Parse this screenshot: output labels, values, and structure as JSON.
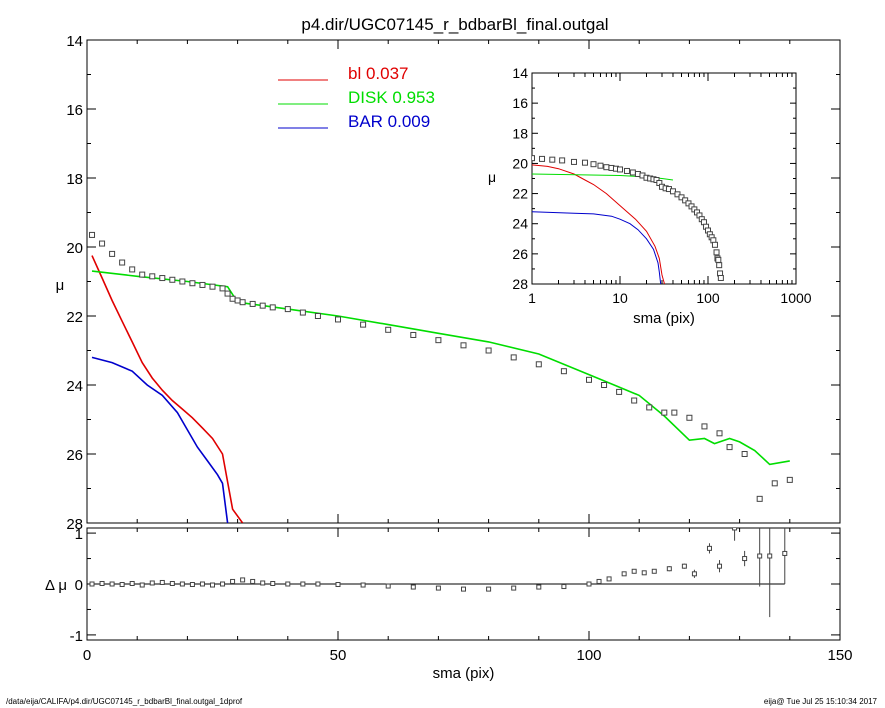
{
  "chart_data": [
    {
      "id": "main",
      "type": "line",
      "title": "p4.dir/UGC07145_r_bdbarBl_final.outgal",
      "xlabel": "sma (pix)",
      "ylabel": "μ",
      "xlim": [
        0,
        150
      ],
      "ylim": [
        28,
        14
      ],
      "y_inverted": true,
      "xticks": [
        0,
        50,
        100,
        150
      ],
      "yticks": [
        14,
        16,
        18,
        20,
        22,
        24,
        26,
        28
      ],
      "legend_placement": "top-center",
      "series": [
        {
          "key": "bl",
          "name": "bl",
          "value_label": "0.037",
          "color": "#e00000",
          "x": [
            1,
            3,
            5,
            7,
            9,
            11,
            13,
            15,
            17,
            19,
            21,
            23,
            25,
            27,
            29,
            31
          ],
          "y": [
            20.25,
            20.9,
            21.55,
            22.15,
            22.75,
            23.35,
            23.8,
            24.15,
            24.45,
            24.7,
            24.95,
            25.25,
            25.55,
            26.0,
            27.6,
            28.0
          ]
        },
        {
          "key": "disk",
          "name": "DISK",
          "value_label": "0.953",
          "color": "#00dd00",
          "x": [
            1,
            10,
            20,
            28,
            30,
            35,
            40,
            50,
            60,
            70,
            80,
            90,
            100,
            105,
            110,
            115,
            120,
            123,
            125,
            128,
            130,
            133,
            136,
            140
          ],
          "y": [
            20.7,
            20.85,
            21.0,
            21.15,
            21.6,
            21.7,
            21.8,
            22.0,
            22.25,
            22.5,
            22.75,
            23.1,
            23.7,
            24.0,
            24.3,
            24.9,
            25.6,
            25.55,
            25.7,
            25.55,
            25.65,
            25.9,
            26.3,
            26.2
          ]
        },
        {
          "key": "bar",
          "name": "BAR",
          "value_label": "0.009",
          "color": "#0000cc",
          "x": [
            1,
            5,
            9,
            12,
            15,
            18,
            20,
            22,
            24,
            26,
            27,
            28
          ],
          "y": [
            23.2,
            23.35,
            23.6,
            24.0,
            24.3,
            24.8,
            25.3,
            25.8,
            26.2,
            26.6,
            26.85,
            28.0
          ]
        },
        {
          "key": "data",
          "name": "",
          "color": "#444444",
          "marker": "square",
          "x": [
            1,
            3,
            5,
            7,
            9,
            11,
            13,
            15,
            17,
            19,
            21,
            23,
            25,
            27,
            28,
            29,
            30,
            31,
            33,
            35,
            37,
            40,
            43,
            46,
            50,
            55,
            60,
            65,
            70,
            75,
            80,
            85,
            90,
            95,
            100,
            103,
            106,
            109,
            112,
            115,
            117,
            120,
            123,
            126,
            128,
            131,
            134,
            137,
            140
          ],
          "y": [
            19.65,
            19.9,
            20.2,
            20.45,
            20.65,
            20.8,
            20.85,
            20.9,
            20.95,
            21.0,
            21.05,
            21.1,
            21.15,
            21.2,
            21.35,
            21.5,
            21.55,
            21.6,
            21.65,
            21.7,
            21.75,
            21.8,
            21.9,
            22.0,
            22.1,
            22.25,
            22.4,
            22.55,
            22.7,
            22.85,
            23.0,
            23.2,
            23.4,
            23.6,
            23.85,
            24.0,
            24.2,
            24.45,
            24.65,
            24.8,
            24.8,
            24.95,
            25.2,
            25.4,
            25.8,
            26.0,
            27.3,
            26.85,
            26.75
          ]
        }
      ]
    },
    {
      "id": "inset",
      "type": "line",
      "xlabel": "sma (pix)",
      "ylabel": "μ",
      "x_scale": "log",
      "xlim": [
        1,
        1000
      ],
      "ylim": [
        28,
        14
      ],
      "y_inverted": true,
      "xticks": [
        1,
        10,
        100,
        1000
      ],
      "yticks": [
        14,
        16,
        18,
        20,
        22,
        24,
        26,
        28
      ],
      "series": [
        {
          "key": "bl",
          "color": "#e00000",
          "x": [
            1,
            1.5,
            2,
            3,
            4,
            5,
            7,
            10,
            15,
            20,
            25,
            28,
            30,
            32
          ],
          "y": [
            20.1,
            20.2,
            20.35,
            20.7,
            21.1,
            21.4,
            22.0,
            22.8,
            23.7,
            24.5,
            25.5,
            26.3,
            27.4,
            28.0
          ]
        },
        {
          "key": "disk",
          "color": "#00dd00",
          "x": [
            1,
            10,
            20,
            30,
            40
          ],
          "y": [
            20.7,
            20.8,
            20.9,
            21.0,
            21.1
          ]
        },
        {
          "key": "bar",
          "color": "#0000cc",
          "x": [
            1,
            3,
            5,
            8,
            10,
            13,
            16,
            20,
            24,
            27,
            28,
            29
          ],
          "y": [
            23.2,
            23.3,
            23.35,
            23.5,
            23.7,
            24.0,
            24.4,
            25.0,
            25.7,
            26.6,
            27.2,
            28.0
          ]
        },
        {
          "key": "data",
          "color": "#444444",
          "marker": "square",
          "x": [
            1,
            1.3,
            1.7,
            2.2,
            3,
            4,
            5,
            6,
            7,
            8,
            9,
            10,
            12,
            14,
            16,
            18,
            20,
            22,
            24,
            26,
            28,
            30,
            33,
            36,
            40,
            45,
            50,
            55,
            60,
            65,
            70,
            75,
            80,
            85,
            90,
            95,
            100,
            105,
            110,
            115,
            120,
            125,
            128,
            131,
            134,
            137,
            140
          ],
          "y": [
            19.65,
            19.7,
            19.75,
            19.8,
            19.9,
            19.95,
            20.05,
            20.15,
            20.25,
            20.3,
            20.35,
            20.4,
            20.5,
            20.6,
            20.7,
            20.8,
            20.95,
            21.0,
            21.05,
            21.1,
            21.3,
            21.55,
            21.65,
            21.7,
            21.85,
            22.05,
            22.25,
            22.45,
            22.65,
            22.85,
            23.05,
            23.25,
            23.45,
            23.7,
            23.9,
            24.2,
            24.45,
            24.7,
            24.9,
            25.1,
            25.4,
            25.9,
            26.3,
            26.4,
            26.75,
            27.3,
            27.6
          ]
        }
      ]
    },
    {
      "id": "residual",
      "type": "scatter",
      "xlabel": "sma (pix)",
      "ylabel": "Δ μ",
      "xlim": [
        0,
        150
      ],
      "ylim": [
        -1.1,
        1.1
      ],
      "xticks": [
        0,
        50,
        100,
        150
      ],
      "yticks": [
        -1,
        0,
        1
      ],
      "zero_line": true,
      "color": "#444444",
      "x": [
        1,
        3,
        5,
        7,
        9,
        11,
        13,
        15,
        17,
        19,
        21,
        23,
        25,
        27,
        29,
        31,
        33,
        35,
        37,
        40,
        43,
        46,
        50,
        55,
        60,
        65,
        70,
        75,
        80,
        85,
        90,
        95,
        100,
        102,
        104,
        107,
        109,
        111,
        113,
        116,
        119,
        121,
        124,
        126,
        129,
        131,
        134,
        136,
        139
      ],
      "y": [
        0.0,
        0.01,
        0.0,
        -0.01,
        0.01,
        -0.02,
        0.02,
        0.03,
        0.01,
        0.0,
        -0.01,
        0.0,
        -0.02,
        0.0,
        0.05,
        0.08,
        0.05,
        0.02,
        0.01,
        0.0,
        0.0,
        0.0,
        -0.01,
        -0.02,
        -0.04,
        -0.06,
        -0.08,
        -0.1,
        -0.1,
        -0.08,
        -0.06,
        -0.05,
        0.0,
        0.05,
        0.1,
        0.2,
        0.25,
        0.22,
        0.25,
        0.3,
        0.35,
        0.2,
        0.7,
        0.35,
        1.1,
        0.5,
        0.55,
        0.55,
        0.6
      ],
      "err": [
        0.01,
        0.01,
        0.01,
        0.01,
        0.01,
        0.01,
        0.01,
        0.01,
        0.01,
        0.01,
        0.01,
        0.01,
        0.01,
        0.01,
        0.01,
        0.01,
        0.01,
        0.01,
        0.01,
        0.01,
        0.01,
        0.01,
        0.01,
        0.01,
        0.01,
        0.01,
        0.01,
        0.01,
        0.02,
        0.02,
        0.02,
        0.02,
        0.02,
        0.02,
        0.03,
        0.03,
        0.03,
        0.04,
        0.04,
        0.05,
        0.05,
        0.08,
        0.1,
        0.12,
        0.25,
        0.15,
        0.6,
        1.2,
        0.6
      ]
    }
  ],
  "footer": {
    "left": "/data/eija/CALIFA/p4.dir/UGC07145_r_bdbarBl_final.outgal_1dprof",
    "right": "eija@  Tue Jul 25 15:10:34 2017"
  }
}
